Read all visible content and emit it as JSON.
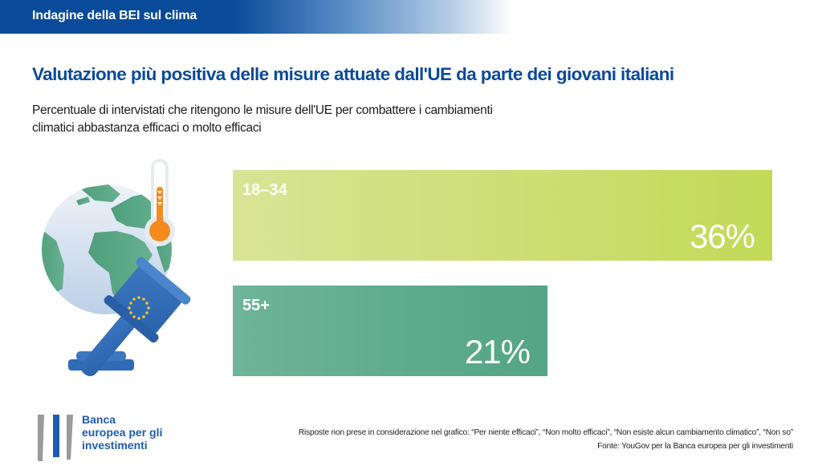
{
  "header": {
    "title": "Indagine della BEI sul clima"
  },
  "main_title": "Valutazione più positiva delle misure attuate dall'UE da parte dei giovani italiani",
  "subtitle": {
    "line1": "Percentuale di intervistati che ritengono le misure dell'UE per combattere i cambiamenti",
    "line2": "climatici abbastanza efficaci o molto efficaci"
  },
  "illustration": {
    "icons": [
      "globe-icon",
      "thermometer-icon",
      "eu-gavel-icon"
    ]
  },
  "chart_data": {
    "type": "bar",
    "orientation": "horizontal",
    "title": "Valutazione più positiva delle misure attuate dall'UE da parte dei giovani italiani",
    "subtitle": "Percentuale di intervistati che ritengono le misure dell'UE per combattere i cambiamenti climatici abbastanza efficaci o molto efficaci",
    "xlabel": "",
    "ylabel": "",
    "unit": "%",
    "xlim": [
      0,
      36
    ],
    "grid": false,
    "categories": [
      "18–34",
      "55+"
    ],
    "values": [
      36,
      21
    ],
    "value_labels": [
      "36%",
      "21%"
    ],
    "colors": [
      "#c3d957",
      "#54a485"
    ],
    "gradient_start_colors": [
      "#d8e495",
      "#6db49a"
    ]
  },
  "logo": {
    "line1": "Banca",
    "line2": "europea per gli",
    "line3": "investimenti",
    "colors": {
      "brand_blue": "#1e5cb3",
      "grey": "#9a9a9a"
    }
  },
  "footnote": {
    "excluded": "Risposte non prese in considerazione nel grafico: “Per niente efficaci”, “Non molto efficaci”, “Non esiste alcun cambiamento climatico”, “Non so”",
    "source": "Fonte: YouGov per la Banca europea per gli investimenti"
  },
  "colors": {
    "header_blue": "#0a4a9a",
    "title_blue": "#0a4a9a",
    "text": "#1c1c1c"
  }
}
